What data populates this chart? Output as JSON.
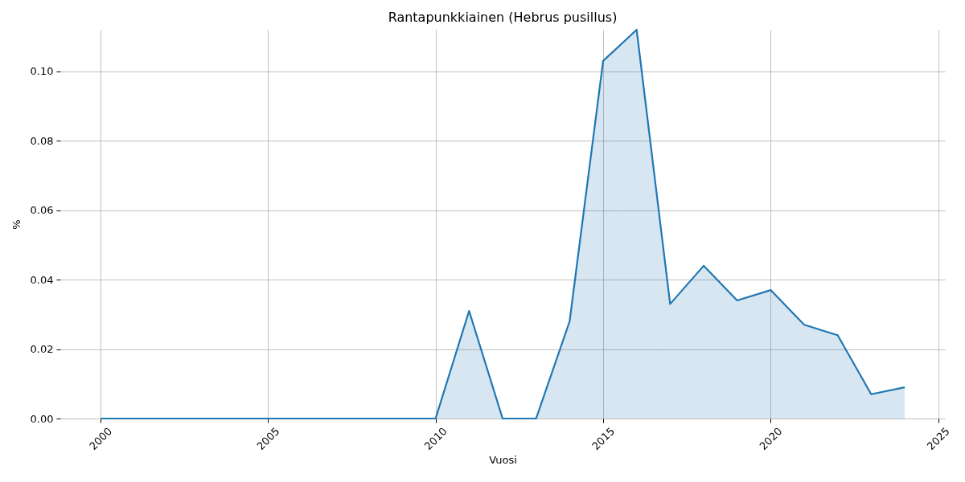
{
  "chart_data": {
    "type": "area",
    "title": "Rantapunkkiainen (Hebrus pusillus)",
    "xlabel": "Vuosi",
    "ylabel": "%",
    "x": [
      2000,
      2001,
      2002,
      2003,
      2004,
      2005,
      2006,
      2007,
      2008,
      2009,
      2010,
      2011,
      2012,
      2013,
      2014,
      2015,
      2016,
      2017,
      2018,
      2019,
      2020,
      2021,
      2022,
      2023,
      2024
    ],
    "series": [
      {
        "color": "#1f77b4",
        "values": [
          0,
          0,
          0,
          0,
          0,
          0,
          0,
          0,
          0,
          0,
          0,
          0.031,
          0,
          0,
          0.028,
          0.103,
          0.112,
          0.033,
          0.044,
          0.034,
          0.037,
          0.027,
          0.024,
          0.007,
          0.009
        ]
      }
    ],
    "xlim": [
      1998.8,
      2025.2
    ],
    "ylim": [
      0,
      0.112
    ],
    "xticks": [
      2000,
      2005,
      2010,
      2015,
      2020,
      2025
    ],
    "yticks": [
      {
        "value": 0,
        "label": "0.00"
      },
      {
        "value": 0.02,
        "label": "0.02"
      },
      {
        "value": 0.04,
        "label": "0.04"
      },
      {
        "value": 0.06,
        "label": "0.06"
      },
      {
        "value": 0.08,
        "label": "0.08"
      },
      {
        "value": 0.1,
        "label": "0.10"
      }
    ],
    "grid": true
  }
}
